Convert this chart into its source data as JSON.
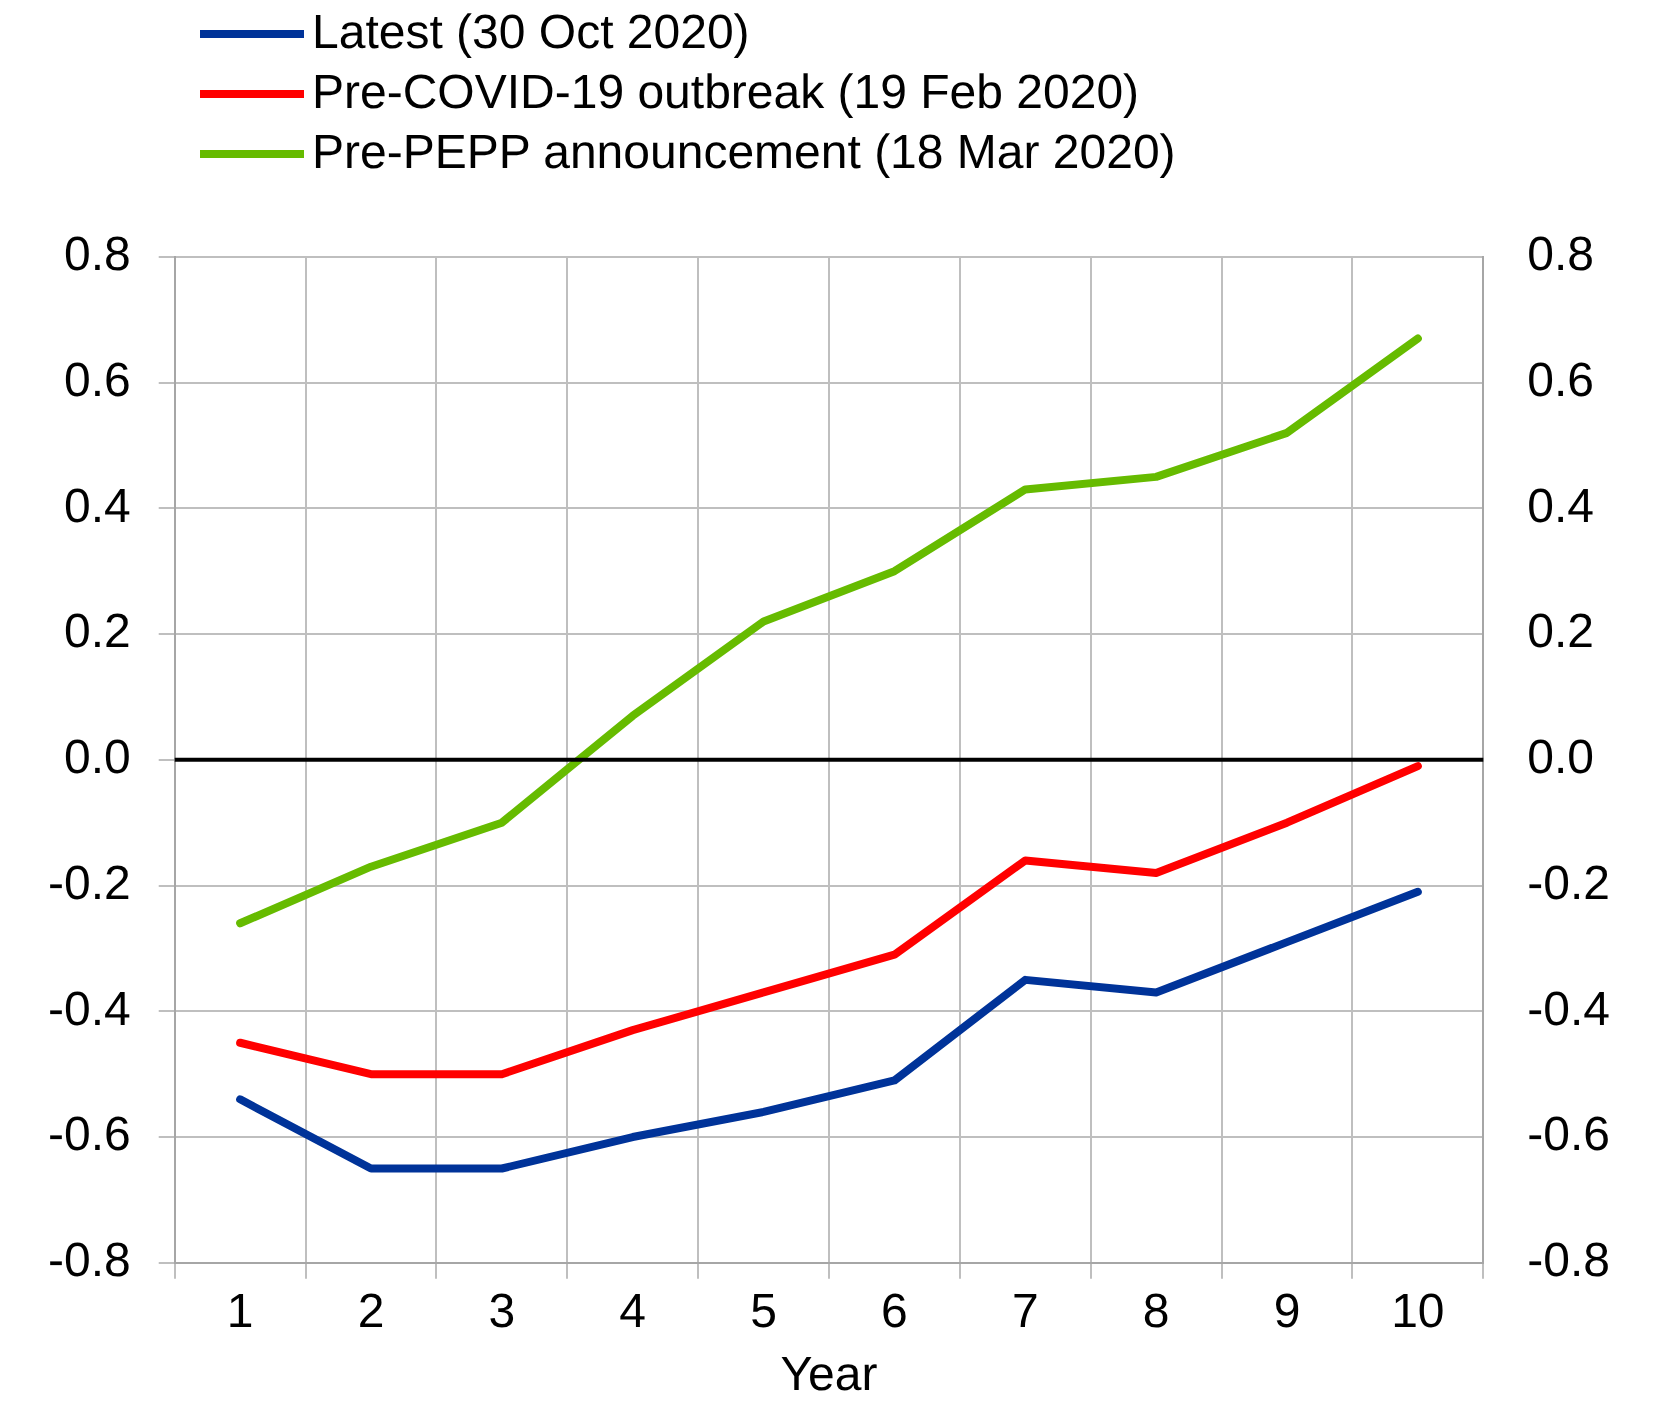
{
  "chart_data": {
    "type": "line",
    "xlabel": "Year",
    "categories": [
      "1",
      "2",
      "3",
      "4",
      "5",
      "6",
      "7",
      "8",
      "9",
      "10"
    ],
    "series": [
      {
        "name": "Latest (30 Oct 2020)",
        "color": "#003399",
        "values": [
          -0.54,
          -0.65,
          -0.65,
          -0.6,
          -0.56,
          -0.51,
          -0.35,
          -0.37,
          -0.29,
          -0.21
        ]
      },
      {
        "name": "Pre-COVID-19 outbreak (19 Feb 2020)",
        "color": "#ff0000",
        "values": [
          -0.45,
          -0.5,
          -0.5,
          -0.43,
          -0.37,
          -0.31,
          -0.16,
          -0.18,
          -0.1,
          -0.01
        ]
      },
      {
        "name": "Pre-PEPP announcement (18 Mar 2020)",
        "color": "#66bb00",
        "values": [
          -0.26,
          -0.17,
          -0.1,
          0.07,
          0.22,
          0.3,
          0.43,
          0.45,
          0.52,
          0.67
        ]
      }
    ],
    "ylim": [
      -0.8,
      0.8
    ],
    "yticks": [
      {
        "value": -0.8,
        "label": "-0.8"
      },
      {
        "value": -0.6,
        "label": "-0.6"
      },
      {
        "value": -0.4,
        "label": "-0.4"
      },
      {
        "value": -0.2,
        "label": "-0.2"
      },
      {
        "value": 0,
        "label": "0.0"
      },
      {
        "value": 0.2,
        "label": "0.2"
      },
      {
        "value": 0.4,
        "label": "0.4"
      },
      {
        "value": 0.6,
        "label": "0.6"
      },
      {
        "value": 0.8,
        "label": "0.8"
      }
    ],
    "y2lim": [
      -0.8,
      0.8
    ],
    "y2ticks": [
      {
        "value": -0.8,
        "label": "-0.8"
      },
      {
        "value": -0.6,
        "label": "-0.6"
      },
      {
        "value": -0.4,
        "label": "-0.4"
      },
      {
        "value": -0.2,
        "label": "-0.2"
      },
      {
        "value": 0,
        "label": "0.0"
      },
      {
        "value": 0.2,
        "label": "0.2"
      },
      {
        "value": 0.4,
        "label": "0.4"
      },
      {
        "value": 0.6,
        "label": "0.6"
      },
      {
        "value": 0.8,
        "label": "0.8"
      }
    ],
    "ref_lines": [
      {
        "axis": "y",
        "value": 0,
        "color": "#000000"
      }
    ],
    "grid": true,
    "legend": "top",
    "marker": "none",
    "line_style": "solid"
  }
}
